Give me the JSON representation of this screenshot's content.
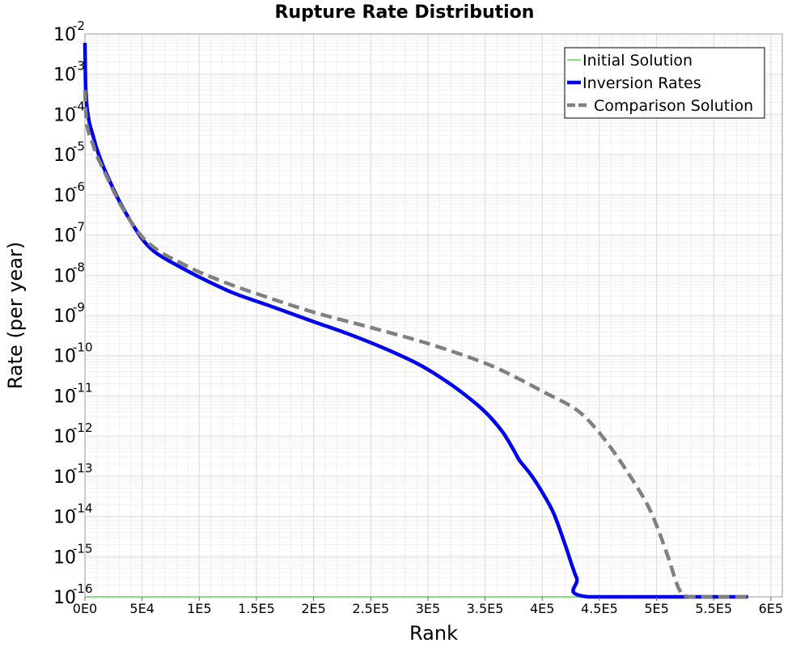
{
  "chart_data": {
    "type": "line",
    "title": "Rupture Rate Distribution",
    "xlabel": "Rank",
    "ylabel": "Rate (per year)",
    "xlim": [
      0,
      610000
    ],
    "ylim": [
      1e-16,
      0.01
    ],
    "yscale": "log",
    "grid": true,
    "legend_position": "top-right",
    "x_ticks": [
      {
        "value": 0,
        "label": "0E0"
      },
      {
        "value": 50000,
        "label": "5E4"
      },
      {
        "value": 100000,
        "label": "1E5"
      },
      {
        "value": 150000,
        "label": "1.5E5"
      },
      {
        "value": 200000,
        "label": "2E5"
      },
      {
        "value": 250000,
        "label": "2.5E5"
      },
      {
        "value": 300000,
        "label": "3E5"
      },
      {
        "value": 350000,
        "label": "3.5E5"
      },
      {
        "value": 400000,
        "label": "4E5"
      },
      {
        "value": 450000,
        "label": "4.5E5"
      },
      {
        "value": 500000,
        "label": "5E5"
      },
      {
        "value": 550000,
        "label": "5.5E5"
      },
      {
        "value": 600000,
        "label": "6E5"
      }
    ],
    "y_ticks": [
      {
        "value": 1e-16,
        "base": "10",
        "exp": "-16"
      },
      {
        "value": 1e-15,
        "base": "10",
        "exp": "-15"
      },
      {
        "value": 1e-14,
        "base": "10",
        "exp": "-14"
      },
      {
        "value": 1e-13,
        "base": "10",
        "exp": "-13"
      },
      {
        "value": 1e-12,
        "base": "10",
        "exp": "-12"
      },
      {
        "value": 1e-11,
        "base": "10",
        "exp": "-11"
      },
      {
        "value": 1e-10,
        "base": "10",
        "exp": "-10"
      },
      {
        "value": 1e-09,
        "base": "10",
        "exp": "-9"
      },
      {
        "value": 1e-08,
        "base": "10",
        "exp": "-8"
      },
      {
        "value": 1e-07,
        "base": "10",
        "exp": "-7"
      },
      {
        "value": 1e-06,
        "base": "10",
        "exp": "-6"
      },
      {
        "value": 1e-05,
        "base": "10",
        "exp": "-5"
      },
      {
        "value": 0.0001,
        "base": "10",
        "exp": "-4"
      },
      {
        "value": 0.001,
        "base": "10",
        "exp": "-3"
      },
      {
        "value": 0.01,
        "base": "10",
        "exp": "-2"
      }
    ],
    "series": [
      {
        "name": "Initial Solution",
        "color": "#5fd35f",
        "dash": "solid",
        "x": [
          0,
          580000
        ],
        "y": [
          1e-16,
          1e-16
        ]
      },
      {
        "name": "Inversion Rates",
        "color": "#0000ee",
        "dash": "solid",
        "x": [
          0,
          500,
          1000,
          2000,
          4000,
          7000,
          10000,
          15000,
          20000,
          30000,
          40000,
          50000,
          60000,
          70000,
          80000,
          100000,
          130000,
          160000,
          200000,
          230000,
          260000,
          290000,
          310000,
          330000,
          350000,
          365000,
          375000,
          380000,
          390000,
          400000,
          410000,
          420000,
          430000,
          440000,
          580000
        ],
        "y": [
          0.006,
          0.0006,
          0.0003,
          0.00013,
          6e-05,
          3e-05,
          1.5e-05,
          6e-06,
          2.8e-06,
          7e-07,
          2.2e-07,
          8e-08,
          4e-08,
          2.6e-08,
          1.8e-08,
          9e-09,
          3.6e-09,
          1.8e-09,
          7e-10,
          3.5e-10,
          1.6e-10,
          6.5e-11,
          3e-11,
          1.2e-11,
          4e-12,
          1.3e-12,
          4.5e-13,
          2.5e-13,
          1.1e-13,
          4e-14,
          1.2e-14,
          2e-15,
          3e-16,
          1e-16,
          1e-16
        ]
      },
      {
        "name": "Comparison Solution",
        "color": "#808080",
        "dash": "dashed",
        "x": [
          0,
          500,
          1000,
          2000,
          4000,
          7000,
          10000,
          15000,
          20000,
          30000,
          40000,
          50000,
          60000,
          70000,
          80000,
          100000,
          130000,
          160000,
          200000,
          250000,
          300000,
          350000,
          380000,
          400000,
          430000,
          450000,
          470000,
          490000,
          500000,
          510000,
          520000,
          530000,
          580000
        ],
        "y": [
          0.0004,
          0.00015,
          9e-05,
          5e-05,
          3e-05,
          1.8e-05,
          1e-05,
          5e-06,
          2.5e-06,
          6.5e-07,
          2.2e-07,
          9e-08,
          5e-08,
          3.2e-08,
          2.3e-08,
          1.2e-08,
          5.5e-09,
          2.8e-09,
          1.2e-09,
          5e-10,
          2e-10,
          6.5e-11,
          2.6e-11,
          1.3e-11,
          4.5e-12,
          1.2e-12,
          2e-13,
          2.5e-14,
          6e-15,
          1e-15,
          1.5e-16,
          1e-16,
          1e-16
        ]
      }
    ]
  }
}
